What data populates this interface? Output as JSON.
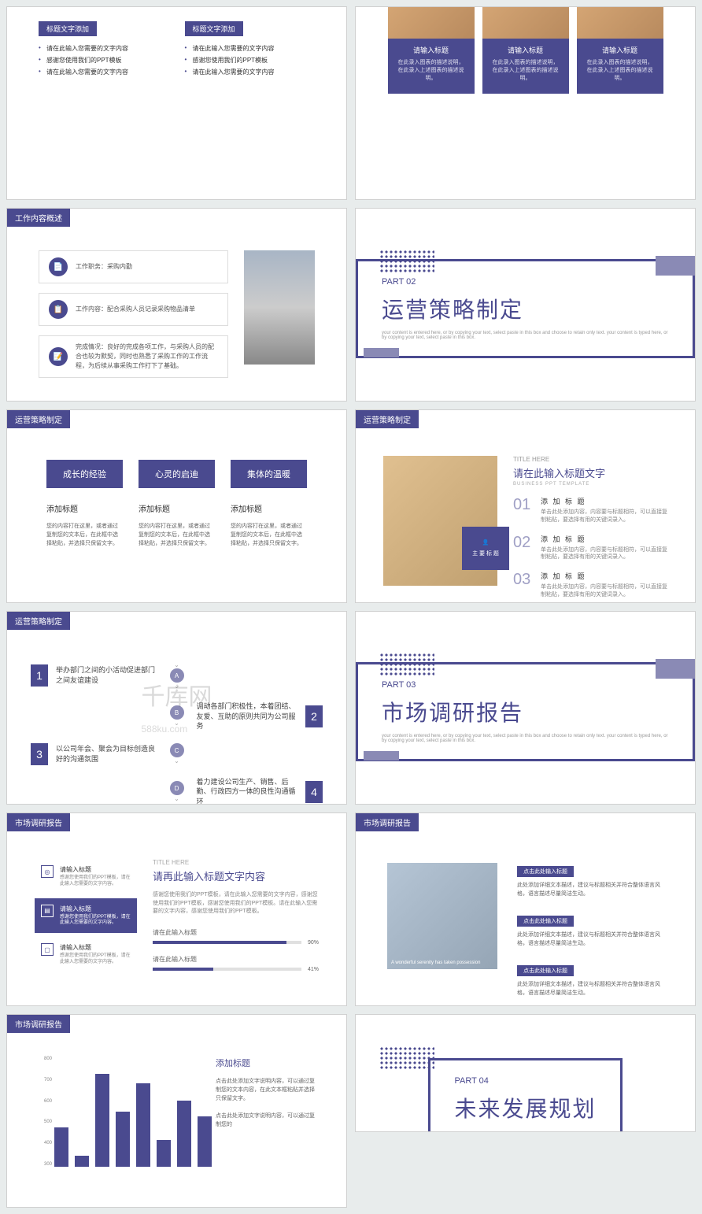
{
  "colors": {
    "primary": "#4a4a8f",
    "light": "#8a8ab5",
    "bg": "#e8ecec"
  },
  "s1": {
    "box1Title": "标题文字添加",
    "box2Title": "标题文字添加",
    "items1": [
      "请在此输入您需要的文字内容",
      "感谢您使用我们的PPT模板",
      "请在此输入您需要的文字内容"
    ],
    "items2": [
      "请在此输入您需要的文字内容",
      "感谢您使用我们的PPT模板",
      "请在此输入您需要的文字内容"
    ]
  },
  "s2": {
    "cards": [
      {
        "title": "请输入标题",
        "desc": "在此录入图表的描述说明，在此录入上述图表的描述说明。"
      },
      {
        "title": "请输入标题",
        "desc": "在此录入图表的描述说明，在此录入上述图表的描述说明。"
      },
      {
        "title": "请输入标题",
        "desc": "在此录入图表的描述说明，在此录入上述图表的描述说明。"
      }
    ]
  },
  "s3": {
    "header": "工作内容概述",
    "items": [
      {
        "icon": "📄",
        "text": "工作职务：采购内勤"
      },
      {
        "icon": "📋",
        "text": "工作内容：配合采购人员记录采购物品清单"
      },
      {
        "icon": "📝",
        "text": "完成情况：良好的完成各项工作，与采购人员的配合也较为默契，同时也熟悉了采购工作的工作流程，为后续从事采购工作打下了基础。"
      }
    ]
  },
  "part2": {
    "label": "PART 02",
    "title": "运营策略制定",
    "sub": "your content is entered here, or by copying your text, select paste in this box and choose to retain only text. your content is typed here, or by copying your text, select paste in this box."
  },
  "s5": {
    "header": "运营策略制定",
    "cols": [
      {
        "head": "成长的经验",
        "subtitle": "添加标题",
        "desc": "您的内容打在这里，或者通过复制您的文本后，在此框中选择粘贴，并选择只保留文字。"
      },
      {
        "head": "心灵的启迪",
        "subtitle": "添加标题",
        "desc": "您的内容打在这里，或者通过复制您的文本后，在此框中选择粘贴，并选择只保留文字。"
      },
      {
        "head": "集体的温暖",
        "subtitle": "添加标题",
        "desc": "您的内容打在这里，或者通过复制您的文本后，在此框中选择粘贴，并选择只保留文字。"
      }
    ]
  },
  "s6": {
    "header": "运营策略制定",
    "small": "TITLE HERE",
    "title": "请在此输入标题文字",
    "sub": "BUSINESS PPT TEMPLATE",
    "badge": "主 要 标 题",
    "items": [
      {
        "num": "01",
        "title": "添 加 标 题",
        "desc": "单击此处添加内容，内容要与标题相符，可以直接复制粘贴，要选择有用的关键词录入。"
      },
      {
        "num": "02",
        "title": "添 加 标 题",
        "desc": "单击此处添加内容，内容要与标题相符，可以直接复制粘贴，要选择有用的关键词录入。"
      },
      {
        "num": "03",
        "title": "添 加 标 题",
        "desc": "单击此处添加内容，内容要与标题相符，可以直接复制粘贴，要选择有用的关键词录入。"
      }
    ]
  },
  "s7": {
    "header": "运营策略制定",
    "steps": [
      {
        "num": "1",
        "letter": "A",
        "text": "举办部门之间的小活动促进部门之间友谊建设",
        "side": "left"
      },
      {
        "num": "2",
        "letter": "B",
        "text": "调动各部门积极性，本着团结、友爱、互助的原则共同为公司服务",
        "side": "right"
      },
      {
        "num": "3",
        "letter": "C",
        "text": "以公司年会、聚会为目标创造良好的沟通氛围",
        "side": "left"
      },
      {
        "num": "4",
        "letter": "D",
        "text": "着力建设公司生产、销售、后勤、行政四方一体的良性沟通循环",
        "side": "right"
      }
    ]
  },
  "part3": {
    "label": "PART 03",
    "title": "市场调研报告",
    "sub": "your content is entered here, or by copying your text, select paste in this box and choose to retain only text. your content is typed here, or by copying your text, select paste in this box."
  },
  "s9": {
    "header": "市场调研报告",
    "left": [
      {
        "title": "请输入标题",
        "desc": "感谢您使用我们的PPT模板，请在此输入您需要的文字内容。",
        "active": false
      },
      {
        "title": "请输入标题",
        "desc": "感谢您使用我们的PPT模板，请在此输入您需要的文字内容。",
        "active": true
      },
      {
        "title": "请输入标题",
        "desc": "感谢您使用我们的PPT模板，请在此输入您需要的文字内容。",
        "active": false
      }
    ],
    "small": "TITLE HERE",
    "title": "请再此输入标题文字内容",
    "desc": "感谢您使用我们的PPT模板，请在此输入您需要的文字内容，感谢您使用我们的PPT模板，感谢您使用我们的PPT模板。请在此输入您需要的文字内容，感谢您使用我们的PPT模板。",
    "bars": [
      {
        "label": "请在此输入标题",
        "pct": 90
      },
      {
        "label": "请在此输入标题",
        "pct": 41
      }
    ]
  },
  "s10": {
    "header": "市场调研报告",
    "caption": "A wonderful serenity has taken possession",
    "items": [
      {
        "pill": "点击此处输入标题",
        "desc": "此处添加详细文本描述，建议与标题相关并符合整体语言风格，语言描述尽量简洁生动。"
      },
      {
        "pill": "点击此处输入标题",
        "desc": "此处添加详细文本描述，建议与标题相关并符合整体语言风格，语言描述尽量简洁生动。"
      },
      {
        "pill": "点击此处输入标题",
        "desc": "此处添加详细文本描述，建议与标题相关并符合整体语言风格，语言描述尽量简洁生动。"
      }
    ]
  },
  "s11": {
    "header": "市场调研报告",
    "chart": {
      "type": "bar",
      "ylabels": [
        "300",
        "400",
        "500",
        "600",
        "700",
        "800"
      ],
      "ymax": 800,
      "ymin": 300,
      "values": [
        480,
        350,
        720,
        550,
        680,
        420,
        600,
        530
      ],
      "bar_color": "#4a4a8f"
    },
    "title": "添加标题",
    "desc1": "点击此处添加文字说明内容，可以通过复制您的文本内容，在此文本框粘贴并选择只保留文字。",
    "desc2": "点击此处添加文字说明内容，可以通过复制您的"
  },
  "part4": {
    "label": "PART 04",
    "title": "未来发展规划",
    "sub": ""
  },
  "watermark": "千库网",
  "watermark_url": "588ku.com"
}
